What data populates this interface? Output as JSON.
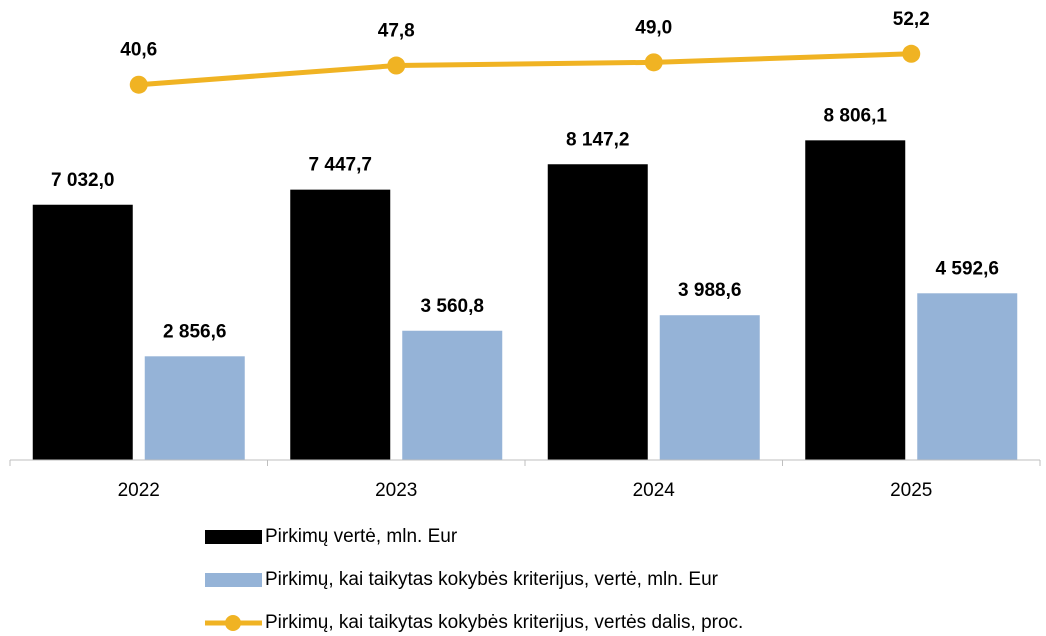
{
  "chart_data": {
    "type": "bar-line",
    "categories": [
      "2022",
      "2023",
      "2024",
      "2025"
    ],
    "series": [
      {
        "name": "Pirkimų vertė, mln. Eur",
        "type": "bar",
        "color": "#000000",
        "values": [
          7032.0,
          7447.7,
          8147.2,
          8806.1
        ],
        "value_labels": [
          "7 032,0",
          "7 447,7",
          "8 147,2",
          "8 806,1"
        ]
      },
      {
        "name": "Pirkimų, kai taikytas kokybės kriterijus, vertė, mln. Eur",
        "type": "bar",
        "color": "#95b3d7",
        "values": [
          2856.6,
          3560.8,
          3988.6,
          4592.6
        ],
        "value_labels": [
          "2 856,6",
          "3 560,8",
          "3 988,6",
          "4 592,6"
        ]
      },
      {
        "name": "Pirkimų, kai taikytas kokybės kriterijus, vertės dalis, proc.",
        "type": "line",
        "axis": "y2",
        "color": "#f0b323",
        "values": [
          40.6,
          47.8,
          49.0,
          52.2
        ],
        "value_labels": [
          "40,6",
          "47,8",
          "49,0",
          "52,2"
        ]
      }
    ],
    "ylim": [
      0,
      10000
    ],
    "y2lim": [
      0,
      60
    ],
    "legend": "bottom"
  }
}
